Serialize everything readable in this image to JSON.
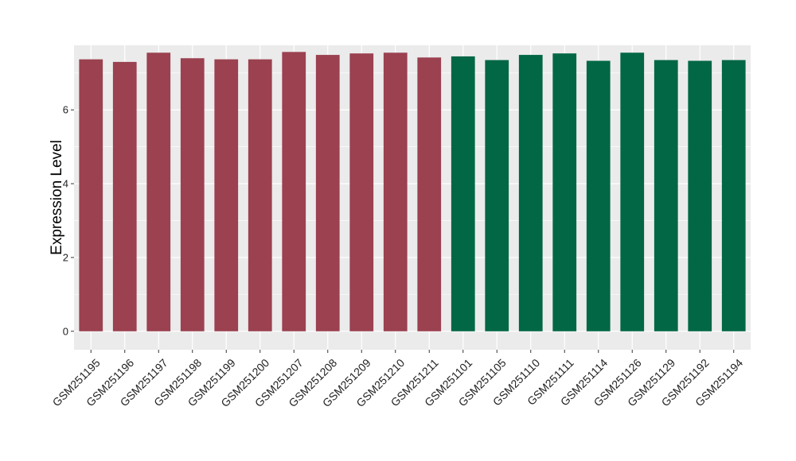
{
  "chart_data": {
    "type": "bar",
    "title": "",
    "xlabel": "",
    "ylabel": "Expression Level",
    "ylim": [
      -0.5,
      7.75
    ],
    "yticks": [
      0,
      2,
      4,
      6
    ],
    "grid": true,
    "categories": [
      "GSM251195",
      "GSM251196",
      "GSM251197",
      "GSM251198",
      "GSM251199",
      "GSM251200",
      "GSM251207",
      "GSM251208",
      "GSM251209",
      "GSM251210",
      "GSM251211",
      "GSM251101",
      "GSM251105",
      "GSM251110",
      "GSM251111",
      "GSM251114",
      "GSM251126",
      "GSM251129",
      "GSM251192",
      "GSM251194"
    ],
    "values": [
      7.37,
      7.3,
      7.55,
      7.4,
      7.37,
      7.37,
      7.57,
      7.49,
      7.53,
      7.55,
      7.42,
      7.45,
      7.35,
      7.49,
      7.53,
      7.33,
      7.55,
      7.35,
      7.33,
      7.35
    ],
    "groups": [
      0,
      0,
      0,
      0,
      0,
      0,
      0,
      0,
      0,
      0,
      0,
      1,
      1,
      1,
      1,
      1,
      1,
      1,
      1,
      1
    ],
    "group_colors": [
      "#9b4150",
      "#016745"
    ],
    "panel_color": "#ebebeb",
    "gridline_color": "#ffffff"
  }
}
